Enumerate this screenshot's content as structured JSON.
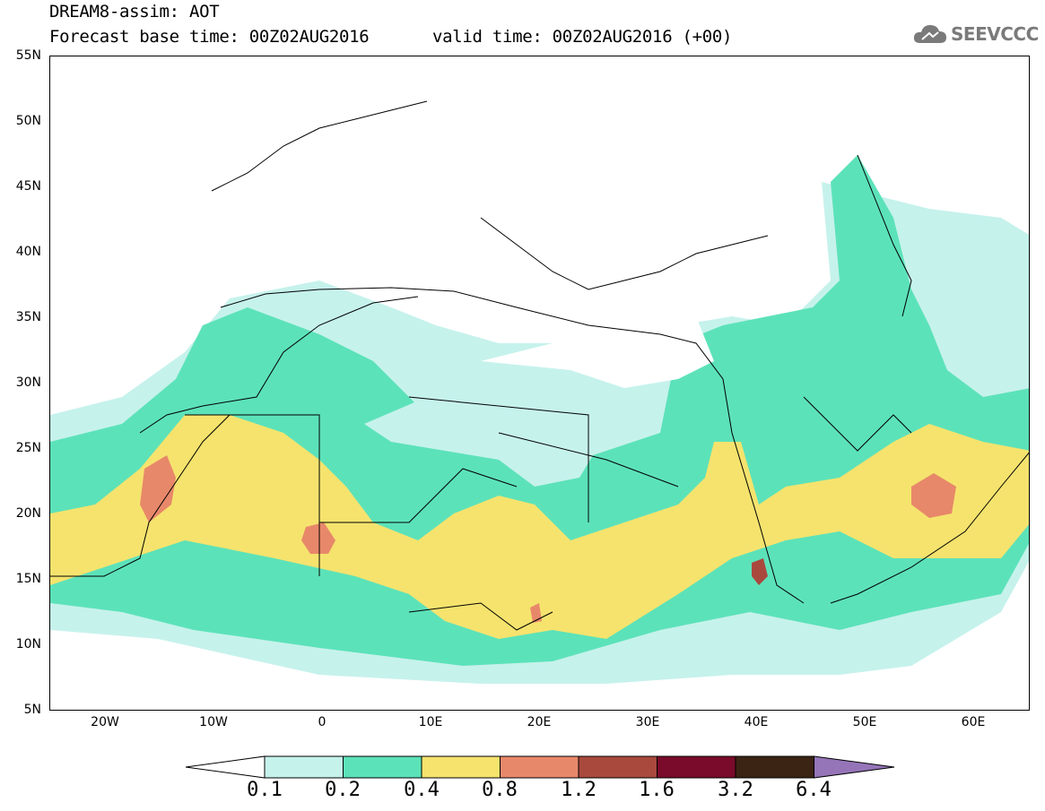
{
  "title": {
    "line1": "DREAM8-assim: AOT",
    "line2a": "Forecast base time: 00Z02AUG2016",
    "line2b": "valid time: 00Z02AUG2016 (+00)"
  },
  "logo": {
    "text": "SEEVCCC",
    "icon": "cloud-icon"
  },
  "axes": {
    "lat_labels": [
      "55N",
      "50N",
      "45N",
      "40N",
      "35N",
      "30N",
      "25N",
      "20N",
      "15N",
      "10N",
      "5N"
    ],
    "lon_labels": [
      "20W",
      "10W",
      "0",
      "10E",
      "20E",
      "30E",
      "40E",
      "50E",
      "60E"
    ]
  },
  "colorbar": {
    "labels": [
      "0.1",
      "0.2",
      "0.4",
      "0.8",
      "1.2",
      "1.6",
      "3.2",
      "6.4"
    ],
    "colors": [
      "#c6f2ec",
      "#5ce2b9",
      "#f5e36e",
      "#e8886a",
      "#a9493e",
      "#7a0b2a",
      "#3c2414",
      "#9575b8"
    ]
  },
  "field_colors": {
    "c01": "#c6f2ec",
    "c02": "#5ce2b9",
    "c04": "#f5e36e",
    "c08": "#e8886a",
    "c12": "#a9493e"
  }
}
